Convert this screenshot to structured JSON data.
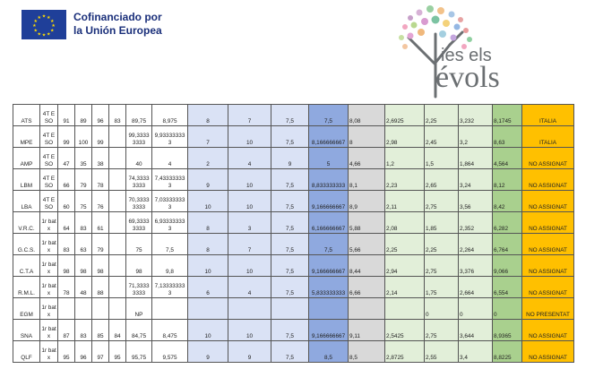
{
  "header": {
    "eu_text_line1": "Cofinanciado por",
    "eu_text_line2": "la Unión Europea",
    "logo_line1": "ies els",
    "logo_line2": "évols"
  },
  "colors": {
    "eu_blue": "#1f3f99",
    "eu_star": "#ffdd00",
    "col_blue_light": "#dae2f5",
    "col_blue_mid": "#8fa9df",
    "col_gray": "#d9d9d9",
    "col_green_light": "#e2efd9",
    "col_green_mid": "#a9d08e",
    "col_orange": "#ffc000"
  },
  "rows": [
    [
      "ATS",
      "4T ESO",
      "91",
      "89",
      "96",
      "83",
      "89,75",
      "8,975",
      "8",
      "7",
      "7,5",
      "7,5",
      "8,08",
      "2,6925",
      "2,25",
      "3,232",
      "8,1745",
      "ITALIA"
    ],
    [
      "MPE",
      "4T ESO",
      "99",
      "100",
      "99",
      "",
      "99,33333333",
      "9,933333333",
      "7",
      "10",
      "7,5",
      "8,166666667",
      "8",
      "2,98",
      "2,45",
      "3,2",
      "8,63",
      "ITALIA"
    ],
    [
      "AMP",
      "4T ESO",
      "47",
      "35",
      "38",
      "",
      "40",
      "4",
      "2",
      "4",
      "9",
      "5",
      "4,66",
      "1,2",
      "1,5",
      "1,864",
      "4,564",
      "NO ASSIGNAT"
    ],
    [
      "LBM",
      "4T ESO",
      "66",
      "79",
      "78",
      "",
      "74,33333333",
      "7,433333333",
      "9",
      "10",
      "7,5",
      "8,833333333",
      "8,1",
      "2,23",
      "2,65",
      "3,24",
      "8,12",
      "NO ASSIGNAT"
    ],
    [
      "LBA",
      "4T ESO",
      "60",
      "75",
      "76",
      "",
      "70,33333333",
      "7,033333333",
      "10",
      "10",
      "7,5",
      "9,166666667",
      "8,9",
      "2,11",
      "2,75",
      "3,56",
      "8,42",
      "NO ASSIGNAT"
    ],
    [
      "V.R.C.",
      "1r batx",
      "64",
      "83",
      "61",
      "",
      "69,33333333",
      "6,933333333",
      "8",
      "3",
      "7,5",
      "6,166666667",
      "5,88",
      "2,08",
      "1,85",
      "2,352",
      "6,282",
      "NO ASSIGNAT"
    ],
    [
      "G.C.S.",
      "1r batx",
      "83",
      "63",
      "79",
      "",
      "75",
      "7,5",
      "8",
      "7",
      "7,5",
      "7,5",
      "5,66",
      "2,25",
      "2,25",
      "2,264",
      "6,764",
      "NO ASSIGNAT"
    ],
    [
      "C.T.A",
      "1r batx",
      "98",
      "98",
      "98",
      "",
      "98",
      "9,8",
      "10",
      "10",
      "7,5",
      "9,166666667",
      "8,44",
      "2,94",
      "2,75",
      "3,376",
      "9,066",
      "NO ASSIGNAT"
    ],
    [
      "R.M.L.",
      "1r batx",
      "78",
      "48",
      "88",
      "",
      "71,33333333",
      "7,133333333",
      "6",
      "4",
      "7,5",
      "5,833333333",
      "6,66",
      "2,14",
      "1,75",
      "2,664",
      "6,554",
      "NO ASSIGNAT"
    ],
    [
      "EGM",
      "1r batx",
      "",
      "",
      "",
      "",
      "NP",
      "",
      "",
      "",
      "",
      "",
      "",
      "",
      "0",
      "0",
      "0",
      "NO PRESENTAT"
    ],
    [
      "SNA",
      "1r batx",
      "87",
      "83",
      "85",
      "84",
      "84,75",
      "8,475",
      "10",
      "10",
      "7,5",
      "9,166666667",
      "9,11",
      "2,5425",
      "2,75",
      "3,644",
      "8,9365",
      "NO ASSIGNAT"
    ],
    [
      "QLF",
      "1r batx",
      "95",
      "96",
      "97",
      "95",
      "95,75",
      "9,575",
      "9",
      "9",
      "7,5",
      "8,5",
      "8,5",
      "2,8725",
      "2,55",
      "3,4",
      "8,8225",
      "NO ASSIGNAT"
    ]
  ]
}
